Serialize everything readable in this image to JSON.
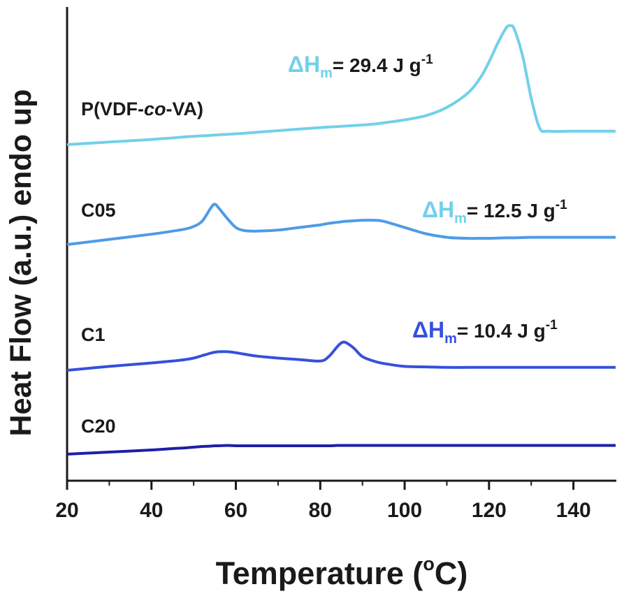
{
  "chart_data": {
    "type": "line",
    "title": "",
    "xlabel_main": "Temperature (",
    "xlabel_degree": "o",
    "xlabel_unit": "C)",
    "ylabel": "Heat Flow (a.u.) endo up",
    "xlim": [
      20,
      150
    ],
    "xticks": [
      20,
      40,
      60,
      80,
      100,
      120,
      140
    ],
    "x": [
      20,
      30,
      40,
      45,
      48,
      50,
      52,
      54,
      55,
      56,
      58,
      60,
      62,
      65,
      70,
      75,
      80,
      82,
      84,
      85,
      86,
      88,
      90,
      93,
      95,
      100,
      105,
      110,
      115,
      118,
      120,
      122,
      124,
      125,
      126,
      128,
      130,
      132,
      134,
      140,
      150
    ],
    "series": [
      {
        "name": "P(VDF-co-VA)",
        "color": "#72d0ea",
        "label_parts": [
          "P(VDF-",
          "co",
          "-VA)"
        ],
        "annotation": {
          "prefix": "ΔH",
          "sub": "m",
          "value": "= 29.4 J g",
          "sup": "-1"
        },
        "values": [
          0.0,
          0.5,
          1.0,
          1.3,
          1.5,
          1.6,
          1.7,
          1.8,
          1.85,
          1.9,
          2.0,
          2.1,
          2.2,
          2.4,
          2.7,
          3.0,
          3.3,
          3.4,
          3.5,
          3.55,
          3.6,
          3.7,
          3.8,
          4.0,
          4.2,
          4.8,
          5.6,
          7.2,
          10.0,
          13.0,
          16.0,
          19.5,
          22.5,
          23.0,
          22.3,
          17.0,
          9.0,
          3.2,
          2.6,
          2.6,
          2.6
        ]
      },
      {
        "name": "C05",
        "color": "#4e9be8",
        "label_parts": [
          "C05"
        ],
        "annotation": {
          "prefix": "ΔH",
          "sub": "m",
          "value": "= 12.5 J g",
          "sup": "-1"
        },
        "values": [
          0.0,
          1.0,
          2.0,
          2.6,
          3.0,
          3.5,
          4.5,
          7.0,
          7.8,
          7.0,
          5.0,
          3.3,
          2.7,
          2.6,
          2.8,
          3.3,
          3.8,
          4.1,
          4.3,
          4.4,
          4.5,
          4.6,
          4.7,
          4.7,
          4.5,
          3.3,
          2.1,
          1.4,
          1.2,
          1.2,
          1.2,
          1.25,
          1.3,
          1.3,
          1.3,
          1.35,
          1.4,
          1.4,
          1.4,
          1.4,
          1.4
        ]
      },
      {
        "name": "C1",
        "color": "#3650dc",
        "label_parts": [
          "C1"
        ],
        "annotation": {
          "prefix": "ΔH",
          "sub": "m",
          "value": "= 10.4 J g",
          "sup": "-1"
        },
        "values": [
          0.0,
          0.8,
          1.5,
          1.9,
          2.2,
          2.5,
          3.0,
          3.5,
          3.7,
          3.8,
          3.8,
          3.6,
          3.3,
          2.9,
          2.5,
          2.2,
          1.9,
          2.8,
          4.8,
          5.6,
          5.7,
          4.5,
          2.8,
          1.8,
          1.4,
          0.8,
          0.7,
          0.6,
          0.6,
          0.6,
          0.6,
          0.6,
          0.6,
          0.6,
          0.6,
          0.6,
          0.6,
          0.6,
          0.6,
          0.6,
          0.6
        ]
      },
      {
        "name": "C20",
        "color": "#1d1fa8",
        "label_parts": [
          "C20"
        ],
        "values": [
          0.0,
          0.3,
          0.6,
          0.8,
          0.9,
          1.0,
          1.1,
          1.15,
          1.2,
          1.2,
          1.25,
          1.2,
          1.2,
          1.2,
          1.2,
          1.2,
          1.2,
          1.2,
          1.25,
          1.25,
          1.25,
          1.25,
          1.25,
          1.25,
          1.25,
          1.25,
          1.25,
          1.25,
          1.25,
          1.25,
          1.25,
          1.25,
          1.25,
          1.25,
          1.25,
          1.25,
          1.25,
          1.25,
          1.25,
          1.25,
          1.25
        ]
      }
    ]
  }
}
